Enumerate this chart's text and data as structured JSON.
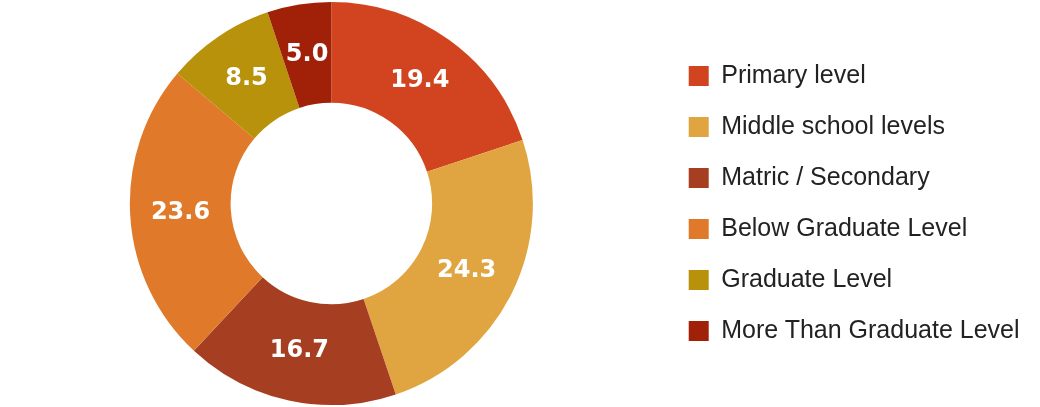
{
  "chart_data": {
    "type": "donut",
    "categories": [
      "Primary level",
      "Middle school levels",
      "Matric / Secondary",
      "Below Graduate Level",
      "Graduate Level",
      "More Than Graduate Level"
    ],
    "values": [
      19.4,
      24.3,
      16.7,
      23.6,
      8.5,
      5.0
    ],
    "value_labels": [
      "19.4",
      "24.3",
      "16.7",
      "23.6",
      "8.5",
      "5.0"
    ],
    "colors": [
      "#d2431f",
      "#e0a540",
      "#a63f22",
      "#e07a2a",
      "#b8920a",
      "#a02008"
    ],
    "legend": "right"
  }
}
